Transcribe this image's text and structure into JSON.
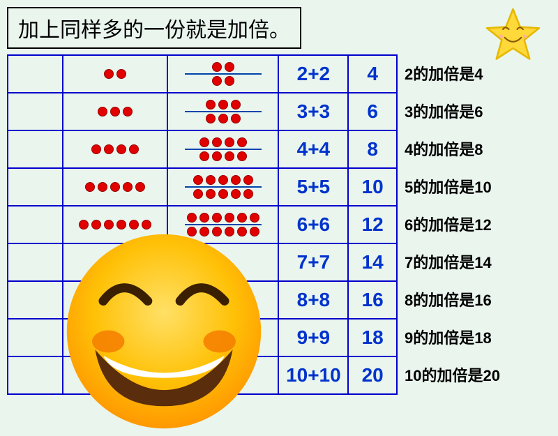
{
  "title": "加上同样多的一份就是加倍。",
  "rows": [
    {
      "n": 2,
      "expr": "2+2",
      "result": "4",
      "caption": "2的加倍是4",
      "showDots": true,
      "dotColor": "#e10000"
    },
    {
      "n": 3,
      "expr": "3+3",
      "result": "6",
      "caption": "3的加倍是6",
      "showDots": true,
      "dotColor": "#e10000"
    },
    {
      "n": 4,
      "expr": "4+4",
      "result": "8",
      "caption": "4的加倍是8",
      "showDots": true,
      "dotColor": "#e10000"
    },
    {
      "n": 5,
      "expr": "5+5",
      "result": "10",
      "caption": "5的加倍是10",
      "showDots": true,
      "dotColor": "#e10000"
    },
    {
      "n": 6,
      "expr": "6+6",
      "result": "12",
      "caption": "6的加倍是12",
      "showDots": true,
      "dotColor": "#e10000"
    },
    {
      "n": 7,
      "expr": "7+7",
      "result": "14",
      "caption": "7的加倍是14",
      "showDots": false,
      "dotColor": "#e10000"
    },
    {
      "n": 8,
      "expr": "8+8",
      "result": "16",
      "caption": "8的加倍是16",
      "showDots": false,
      "dotColor": "#e10000"
    },
    {
      "n": 9,
      "expr": "9+9",
      "result": "18",
      "caption": "9的加倍是18",
      "showDots": false,
      "dotColor": "#e10000"
    },
    {
      "n": 10,
      "expr": "10+10",
      "result": "20",
      "caption": "10的加倍是20",
      "showDots": false,
      "dotColor": "#e10000"
    }
  ],
  "style": {
    "background": "#eaf5ee",
    "tableBorder": "#0000cc",
    "textBlue": "#0033cc",
    "dividerColor": "#0044aa",
    "starFill": "#ffd83a",
    "starStroke": "#e6b800",
    "smileyFill": "#ffb300",
    "smileyGradTop": "#ffd54a",
    "smileyGradBot": "#ff9800",
    "smileyCheek": "#f57c00",
    "smileyMouth": "#5a2d0c"
  }
}
